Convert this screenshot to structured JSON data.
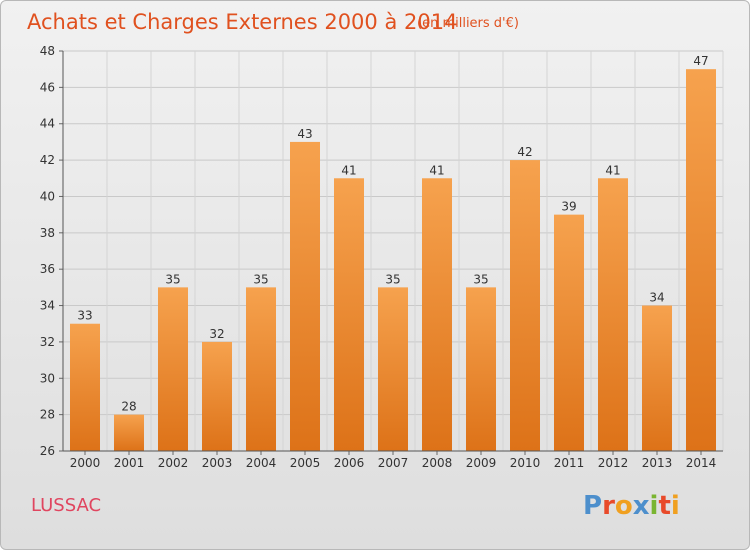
{
  "header": {
    "title": "Achats et Charges Externes 2000 à 2014",
    "unit": "(en milliers d'€)"
  },
  "footer": {
    "place": "LUSSAC",
    "logo": "Proxiti"
  },
  "colors": {
    "bar_light": "#f6a24e",
    "bar_dark": "#dd7218",
    "title": "#e0511f",
    "place": "#e0455f"
  },
  "chart_data": {
    "type": "bar",
    "title": "Achats et Charges Externes 2000 à 2014",
    "subtitle": "(en milliers d'€)",
    "categories": [
      "2000",
      "2001",
      "2002",
      "2003",
      "2004",
      "2005",
      "2006",
      "2007",
      "2008",
      "2009",
      "2010",
      "2011",
      "2012",
      "2013",
      "2014"
    ],
    "values": [
      33,
      28,
      35,
      32,
      35,
      43,
      41,
      35,
      41,
      35,
      42,
      39,
      41,
      34,
      47
    ],
    "ylim": [
      26,
      48
    ],
    "yticks": [
      26,
      28,
      30,
      32,
      34,
      36,
      38,
      40,
      42,
      44,
      46,
      48
    ],
    "grid": true,
    "data_labels": true
  }
}
